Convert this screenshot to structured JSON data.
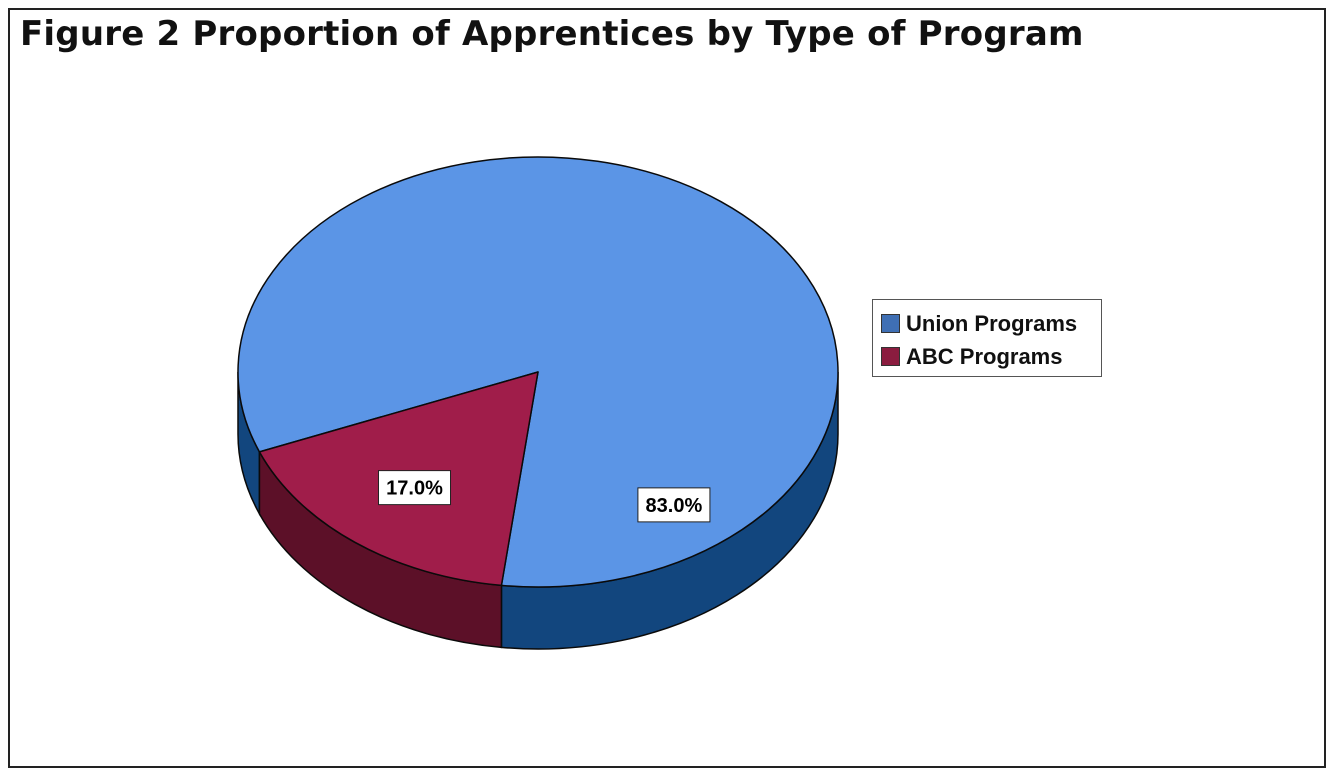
{
  "chart_data": {
    "type": "pie",
    "title": "Figure 2 Proportion of Apprentices by Type of Program",
    "categories": [
      "Union Programs",
      "ABC Programs"
    ],
    "values": [
      83.0,
      17.0
    ],
    "data_labels": [
      "83.0%",
      "17.0%"
    ],
    "colors": [
      "#3f6fb4",
      "#8b1c3f"
    ],
    "top_colors": [
      "#5b95e6",
      "#a01d4a"
    ],
    "side_colors": [
      "#12467e",
      "#5c1028"
    ],
    "legend": {
      "position": "right",
      "entries": [
        "Union Programs",
        "ABC Programs"
      ]
    },
    "style": "3d"
  }
}
